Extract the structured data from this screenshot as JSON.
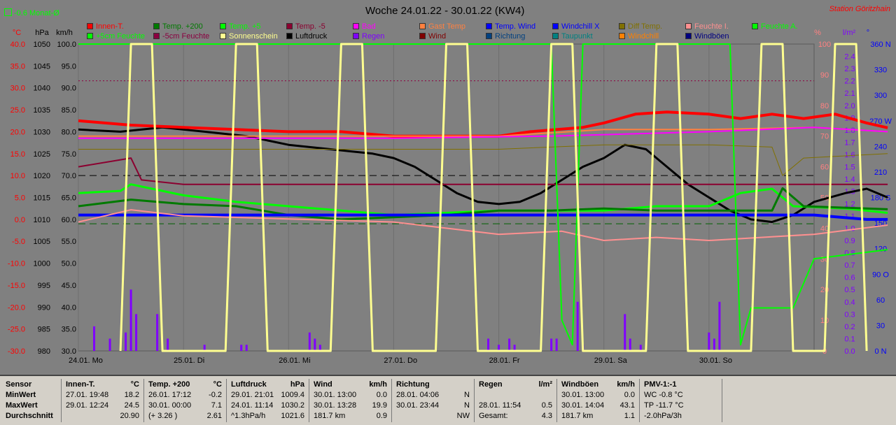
{
  "header": {
    "title": "Woche 24.01.22 - 30.01.22 (KW4)",
    "station": "Station Göritzhain",
    "monthly": "-0.6 Monat-Ø",
    "units_left": [
      "°C",
      "hPa",
      "km/h"
    ],
    "units_right": [
      "%",
      "l/m²",
      "°"
    ]
  },
  "colors": {
    "Innen-T.": "#ff0000",
    "Temp. +200": "#007a00",
    "Temp. +5": "#00ff00",
    "Temp. -5": "#8b0030",
    "Bad": "#ff00ff",
    "Gast Temp": "#ff8040",
    "Temp. Wind": "#0000ff",
    "Windchill X": "#0000ff",
    "Diff Temp.": "#807000",
    "Feuchte I.": "#ff9090",
    "Feuchte A.": "#00ff00",
    "+5cm Feuchte": "#00ff00",
    "-5cm Feuchte": "#8b0040",
    "Sonnenschein": "#ffff90",
    "Luftdruck": "#000000",
    "Regen": "#8000ff",
    "Wind": "#800000",
    "Richtung": "#004080",
    "Taupunkt": "#008080",
    "Windchill": "#ff8000",
    "Windböen": "#000080"
  },
  "legend": [
    [
      "Innen-T.",
      "Temp. +200",
      "Temp. +5",
      "Temp. -5",
      "Bad",
      "Gast Temp",
      "Temp. Wind",
      "Windchill X",
      "Diff Temp.",
      "Feuchte I.",
      "Feuchte A."
    ],
    [
      "+5cm Feuchte",
      "-5cm Feuchte",
      "Sonnenschein",
      "Luftdruck",
      "Regen",
      "Wind",
      "Richtung",
      "Taupunkt",
      "Windchill",
      "Windböen"
    ]
  ],
  "chart_data": {
    "type": "line",
    "title": "Woche 24.01.22 - 30.01.22 (KW4)",
    "x_ticks": [
      "24.01. Mo",
      "25.01. Di",
      "26.01. Mi",
      "27.01. Do",
      "28.01. Fr",
      "29.01. Sa",
      "30.01. So"
    ],
    "axes": {
      "temp_c": [
        "40.0",
        "35.0",
        "30.0",
        "25.0",
        "20.0",
        "15.0",
        "10.0",
        "5.0",
        "0.0",
        "-5.0",
        "-10.0",
        "-15.0",
        "-20.0",
        "-25.0",
        "-30.0"
      ],
      "pressure_hpa": [
        "1050",
        "1045",
        "1040",
        "1035",
        "1030",
        "1025",
        "1020",
        "1015",
        "1010",
        "1005",
        "1000",
        "995",
        "990",
        "985",
        "980"
      ],
      "wind_kmh": [
        "100.0",
        "95.0",
        "90.0",
        "85.0",
        "80.0",
        "75.0",
        "70.0",
        "65.0",
        "60.0",
        "55.0",
        "50.0",
        "45.0",
        "40.0",
        "35.0",
        "30.0"
      ],
      "humidity_pct": [
        "100",
        "90",
        "80",
        "70",
        "60",
        "50",
        "40",
        "30",
        "20",
        "10",
        "0"
      ],
      "rain_lm2": [
        "2.4",
        "2.3",
        "2.2",
        "2.1",
        "2.0",
        "1.9",
        "1.8",
        "1.7",
        "1.6",
        "1.5",
        "1.4",
        "1.3",
        "1.2",
        "1.1",
        "1.0",
        "0.9",
        "0.8",
        "0.7",
        "0.6",
        "0.5",
        "0.4",
        "0.3",
        "0.2",
        "0.1",
        "0.0"
      ],
      "direction_deg": [
        "360 N",
        "330",
        "300",
        "270 W",
        "240",
        "210",
        "180 S",
        "150",
        "120",
        "90 O",
        "60",
        "30",
        "0 N"
      ]
    },
    "ylim_temp": [
      -30,
      40
    ],
    "ylim_pressure": [
      980,
      1050
    ],
    "ylim_humidity": [
      0,
      100
    ],
    "x_range_days": [
      0,
      7
    ],
    "series": [
      {
        "name": "Luftdruck",
        "unit": "hPa",
        "points": [
          [
            0,
            1030.5
          ],
          [
            0.4,
            1030
          ],
          [
            0.8,
            1031
          ],
          [
            1.2,
            1030
          ],
          [
            1.6,
            1029
          ],
          [
            2.0,
            1027
          ],
          [
            2.4,
            1026
          ],
          [
            2.8,
            1025
          ],
          [
            3.0,
            1024
          ],
          [
            3.2,
            1022
          ],
          [
            3.4,
            1019
          ],
          [
            3.6,
            1016
          ],
          [
            3.8,
            1014
          ],
          [
            4.0,
            1013.5
          ],
          [
            4.2,
            1014
          ],
          [
            4.4,
            1016
          ],
          [
            4.6,
            1019
          ],
          [
            4.8,
            1022
          ],
          [
            5.0,
            1024
          ],
          [
            5.2,
            1027
          ],
          [
            5.4,
            1026
          ],
          [
            5.6,
            1022
          ],
          [
            5.8,
            1018
          ],
          [
            6.0,
            1015
          ],
          [
            6.2,
            1012
          ],
          [
            6.4,
            1010
          ],
          [
            6.6,
            1009.4
          ],
          [
            6.8,
            1011
          ],
          [
            7.0,
            1014
          ],
          [
            7.3,
            1016
          ],
          [
            7.5,
            1017
          ],
          [
            7.7,
            1015
          ]
        ]
      },
      {
        "name": "Innen-T.",
        "unit": "°C",
        "points": [
          [
            0,
            22.5
          ],
          [
            0.5,
            21.5
          ],
          [
            1.0,
            21
          ],
          [
            1.5,
            20.5
          ],
          [
            2.0,
            20
          ],
          [
            2.5,
            20
          ],
          [
            3.0,
            19
          ],
          [
            3.5,
            19
          ],
          [
            4.0,
            19
          ],
          [
            4.3,
            20
          ],
          [
            4.8,
            21
          ],
          [
            5.0,
            22
          ],
          [
            5.3,
            24
          ],
          [
            5.6,
            24.5
          ],
          [
            6.0,
            24
          ],
          [
            6.3,
            23
          ],
          [
            6.6,
            24
          ],
          [
            6.9,
            23
          ],
          [
            7.2,
            24
          ],
          [
            7.5,
            22
          ],
          [
            7.7,
            20.9
          ]
        ]
      },
      {
        "name": "Gast Temp",
        "unit": "°C",
        "points": [
          [
            0,
            19
          ],
          [
            2,
            19
          ],
          [
            4,
            19
          ],
          [
            5,
            20.5
          ],
          [
            6,
            20.5
          ],
          [
            7,
            21
          ],
          [
            7.7,
            20
          ]
        ]
      },
      {
        "name": "Bad",
        "unit": "°C",
        "points": [
          [
            0,
            18.5
          ],
          [
            3,
            18.5
          ],
          [
            4.5,
            19
          ],
          [
            6,
            20
          ],
          [
            7,
            21
          ],
          [
            7.7,
            20
          ]
        ]
      },
      {
        "name": "Diff Temp.",
        "unit": "°C",
        "points": [
          [
            0,
            16
          ],
          [
            1,
            16
          ],
          [
            2,
            16
          ],
          [
            3,
            16
          ],
          [
            4,
            16
          ],
          [
            5,
            17
          ],
          [
            6,
            17
          ],
          [
            6.6,
            16.5
          ],
          [
            6.7,
            10
          ],
          [
            6.9,
            14
          ],
          [
            7.7,
            15
          ]
        ]
      },
      {
        "name": "Temp. -5",
        "unit": "°C",
        "points": [
          [
            0,
            12
          ],
          [
            0.5,
            14
          ],
          [
            0.6,
            9
          ],
          [
            1,
            8
          ],
          [
            7.7,
            8
          ]
        ]
      },
      {
        "name": "Temp. +5",
        "unit": "°C",
        "points": [
          [
            0,
            6
          ],
          [
            0.4,
            6.5
          ],
          [
            0.5,
            8
          ],
          [
            1.0,
            5.5
          ],
          [
            1.5,
            4
          ],
          [
            2.0,
            3
          ],
          [
            2.5,
            2
          ],
          [
            3.0,
            1
          ],
          [
            3.5,
            1.5
          ],
          [
            4.0,
            2
          ],
          [
            4.5,
            2
          ],
          [
            5.0,
            2
          ],
          [
            5.5,
            3
          ],
          [
            6.0,
            3
          ],
          [
            6.3,
            6
          ],
          [
            6.6,
            7
          ],
          [
            6.8,
            3
          ],
          [
            7.3,
            2.5
          ],
          [
            7.7,
            1.5
          ]
        ]
      },
      {
        "name": "Temp. +200",
        "unit": "°C",
        "points": [
          [
            0,
            3
          ],
          [
            0.5,
            4.5
          ],
          [
            1.0,
            3.5
          ],
          [
            1.5,
            3
          ],
          [
            2.0,
            1
          ],
          [
            2.5,
            0
          ],
          [
            3.0,
            0.5
          ],
          [
            3.5,
            1
          ],
          [
            4.0,
            2
          ],
          [
            4.5,
            2
          ],
          [
            5.0,
            2.5
          ],
          [
            5.5,
            2
          ],
          [
            6.0,
            2
          ],
          [
            6.6,
            2
          ],
          [
            6.7,
            7.1
          ],
          [
            6.9,
            3
          ],
          [
            7.5,
            2.5
          ],
          [
            7.7,
            2.3
          ]
        ]
      },
      {
        "name": "Temp. Wind",
        "unit": "°C",
        "points": [
          [
            0,
            1
          ],
          [
            6.5,
            1
          ],
          [
            7.0,
            1
          ],
          [
            7.5,
            0
          ],
          [
            7.7,
            0
          ]
        ]
      },
      {
        "name": "Feuchte I.",
        "unit": "%",
        "points": [
          [
            0,
            42
          ],
          [
            0.5,
            46
          ],
          [
            1,
            44
          ],
          [
            2,
            43
          ],
          [
            3,
            42
          ],
          [
            4,
            38
          ],
          [
            4.6,
            39
          ],
          [
            5.0,
            36
          ],
          [
            5.5,
            37
          ],
          [
            6.0,
            36
          ],
          [
            6.5,
            37
          ],
          [
            7,
            38
          ],
          [
            7.7,
            41
          ]
        ]
      },
      {
        "name": "Feuchte A.",
        "unit": "%",
        "points": [
          [
            0,
            100
          ],
          [
            3,
            100
          ],
          [
            4.5,
            100
          ],
          [
            4.6,
            10
          ],
          [
            4.7,
            2
          ],
          [
            4.8,
            100
          ],
          [
            6.2,
            100
          ],
          [
            6.3,
            2
          ],
          [
            6.4,
            14
          ],
          [
            6.6,
            14
          ],
          [
            6.8,
            14
          ],
          [
            7.0,
            30
          ],
          [
            7.7,
            33
          ]
        ]
      },
      {
        "name": "Sonnenschein",
        "unit": "%",
        "points": [
          [
            0.4,
            0
          ],
          [
            0.5,
            100
          ],
          [
            0.7,
            100
          ],
          [
            0.8,
            0
          ],
          [
            1.4,
            0
          ],
          [
            1.5,
            100
          ],
          [
            1.7,
            100
          ],
          [
            1.8,
            0
          ],
          [
            2.4,
            0
          ],
          [
            2.5,
            100
          ],
          [
            2.7,
            100
          ],
          [
            2.8,
            0
          ],
          [
            3.4,
            0
          ],
          [
            3.5,
            100
          ],
          [
            3.7,
            100
          ],
          [
            3.8,
            0
          ],
          [
            4.4,
            0
          ],
          [
            4.5,
            100
          ],
          [
            4.7,
            100
          ],
          [
            4.8,
            0
          ],
          [
            5.4,
            0
          ],
          [
            5.5,
            100
          ],
          [
            5.7,
            100
          ],
          [
            5.8,
            0
          ],
          [
            6.4,
            0
          ],
          [
            6.5,
            100
          ],
          [
            6.7,
            100
          ],
          [
            6.8,
            0
          ],
          [
            7.1,
            0
          ],
          [
            7.2,
            100
          ],
          [
            7.4,
            100
          ],
          [
            7.5,
            0
          ]
        ]
      }
    ],
    "rain_bars": [
      [
        0.15,
        0.2
      ],
      [
        0.3,
        0.1
      ],
      [
        0.45,
        0.15
      ],
      [
        0.5,
        0.5
      ],
      [
        0.55,
        0.3
      ],
      [
        0.75,
        0.3
      ],
      [
        0.85,
        0.1
      ],
      [
        1.2,
        0.05
      ],
      [
        1.55,
        0.05
      ],
      [
        1.6,
        0.05
      ],
      [
        2.2,
        0.15
      ],
      [
        2.25,
        0.1
      ],
      [
        2.3,
        0.05
      ],
      [
        3.9,
        0.1
      ],
      [
        4.0,
        0.05
      ],
      [
        4.1,
        0.1
      ],
      [
        4.15,
        0.05
      ],
      [
        4.5,
        0.1
      ],
      [
        4.55,
        0.1
      ],
      [
        4.75,
        0.4
      ],
      [
        4.8,
        0.05
      ],
      [
        5.2,
        0.3
      ],
      [
        5.25,
        0.1
      ],
      [
        5.35,
        0.05
      ],
      [
        6.0,
        0.15
      ],
      [
        6.05,
        0.1
      ],
      [
        6.1,
        0.4
      ]
    ]
  },
  "stats": {
    "row_labels": [
      "Sensor",
      "MinWert",
      "MaxWert",
      "Durchschnitt"
    ],
    "columns": [
      {
        "title": "Innen-T.",
        "unit": "°C",
        "rows": [
          [
            "27.01. 19:48",
            "18.2"
          ],
          [
            "29.01. 12:24",
            "24.5"
          ],
          [
            "",
            "20.90"
          ]
        ]
      },
      {
        "title": "Temp. +200",
        "unit": "°C",
        "rows": [
          [
            "26.01. 17:12",
            "-0.2"
          ],
          [
            "30.01. 00:00",
            "7.1"
          ],
          [
            "(+ 3.26 )",
            "2.61"
          ]
        ]
      },
      {
        "title": "Luftdruck",
        "unit": "hPa",
        "rows": [
          [
            "29.01. 21:01",
            "1009.4"
          ],
          [
            "24.01. 11:14",
            "1030.2"
          ],
          [
            "^1.3hPa/h",
            "1021.6"
          ]
        ]
      },
      {
        "title": "Wind",
        "unit": "km/h",
        "rows": [
          [
            "30.01. 13:00",
            "0.0"
          ],
          [
            "30.01. 13:28",
            "19.9"
          ],
          [
            "181.7 km",
            "0.9"
          ]
        ]
      },
      {
        "title": "Richtung",
        "unit": "",
        "rows": [
          [
            "28.01. 04:06",
            "N"
          ],
          [
            "30.01. 23:44",
            "N"
          ],
          [
            "",
            "NW"
          ]
        ]
      },
      {
        "title": "Regen",
        "unit": "l/m²",
        "rows": [
          [
            "",
            ""
          ],
          [
            "28.01. 11:54",
            "0.5"
          ],
          [
            "Gesamt:",
            "4.3"
          ]
        ]
      },
      {
        "title": "Windböen",
        "unit": "km/h",
        "rows": [
          [
            "30.01. 13:00",
            "0.0"
          ],
          [
            "30.01. 14:04",
            "43.1"
          ],
          [
            "181.7 km",
            "1.1"
          ]
        ]
      },
      {
        "title": "PMV-1:-1",
        "unit": "",
        "rows": [
          [
            "WC -0.8 °C",
            ""
          ],
          [
            "TP -11.7 °C",
            ""
          ],
          [
            "-2.0hPa/3h",
            ""
          ]
        ]
      }
    ]
  }
}
